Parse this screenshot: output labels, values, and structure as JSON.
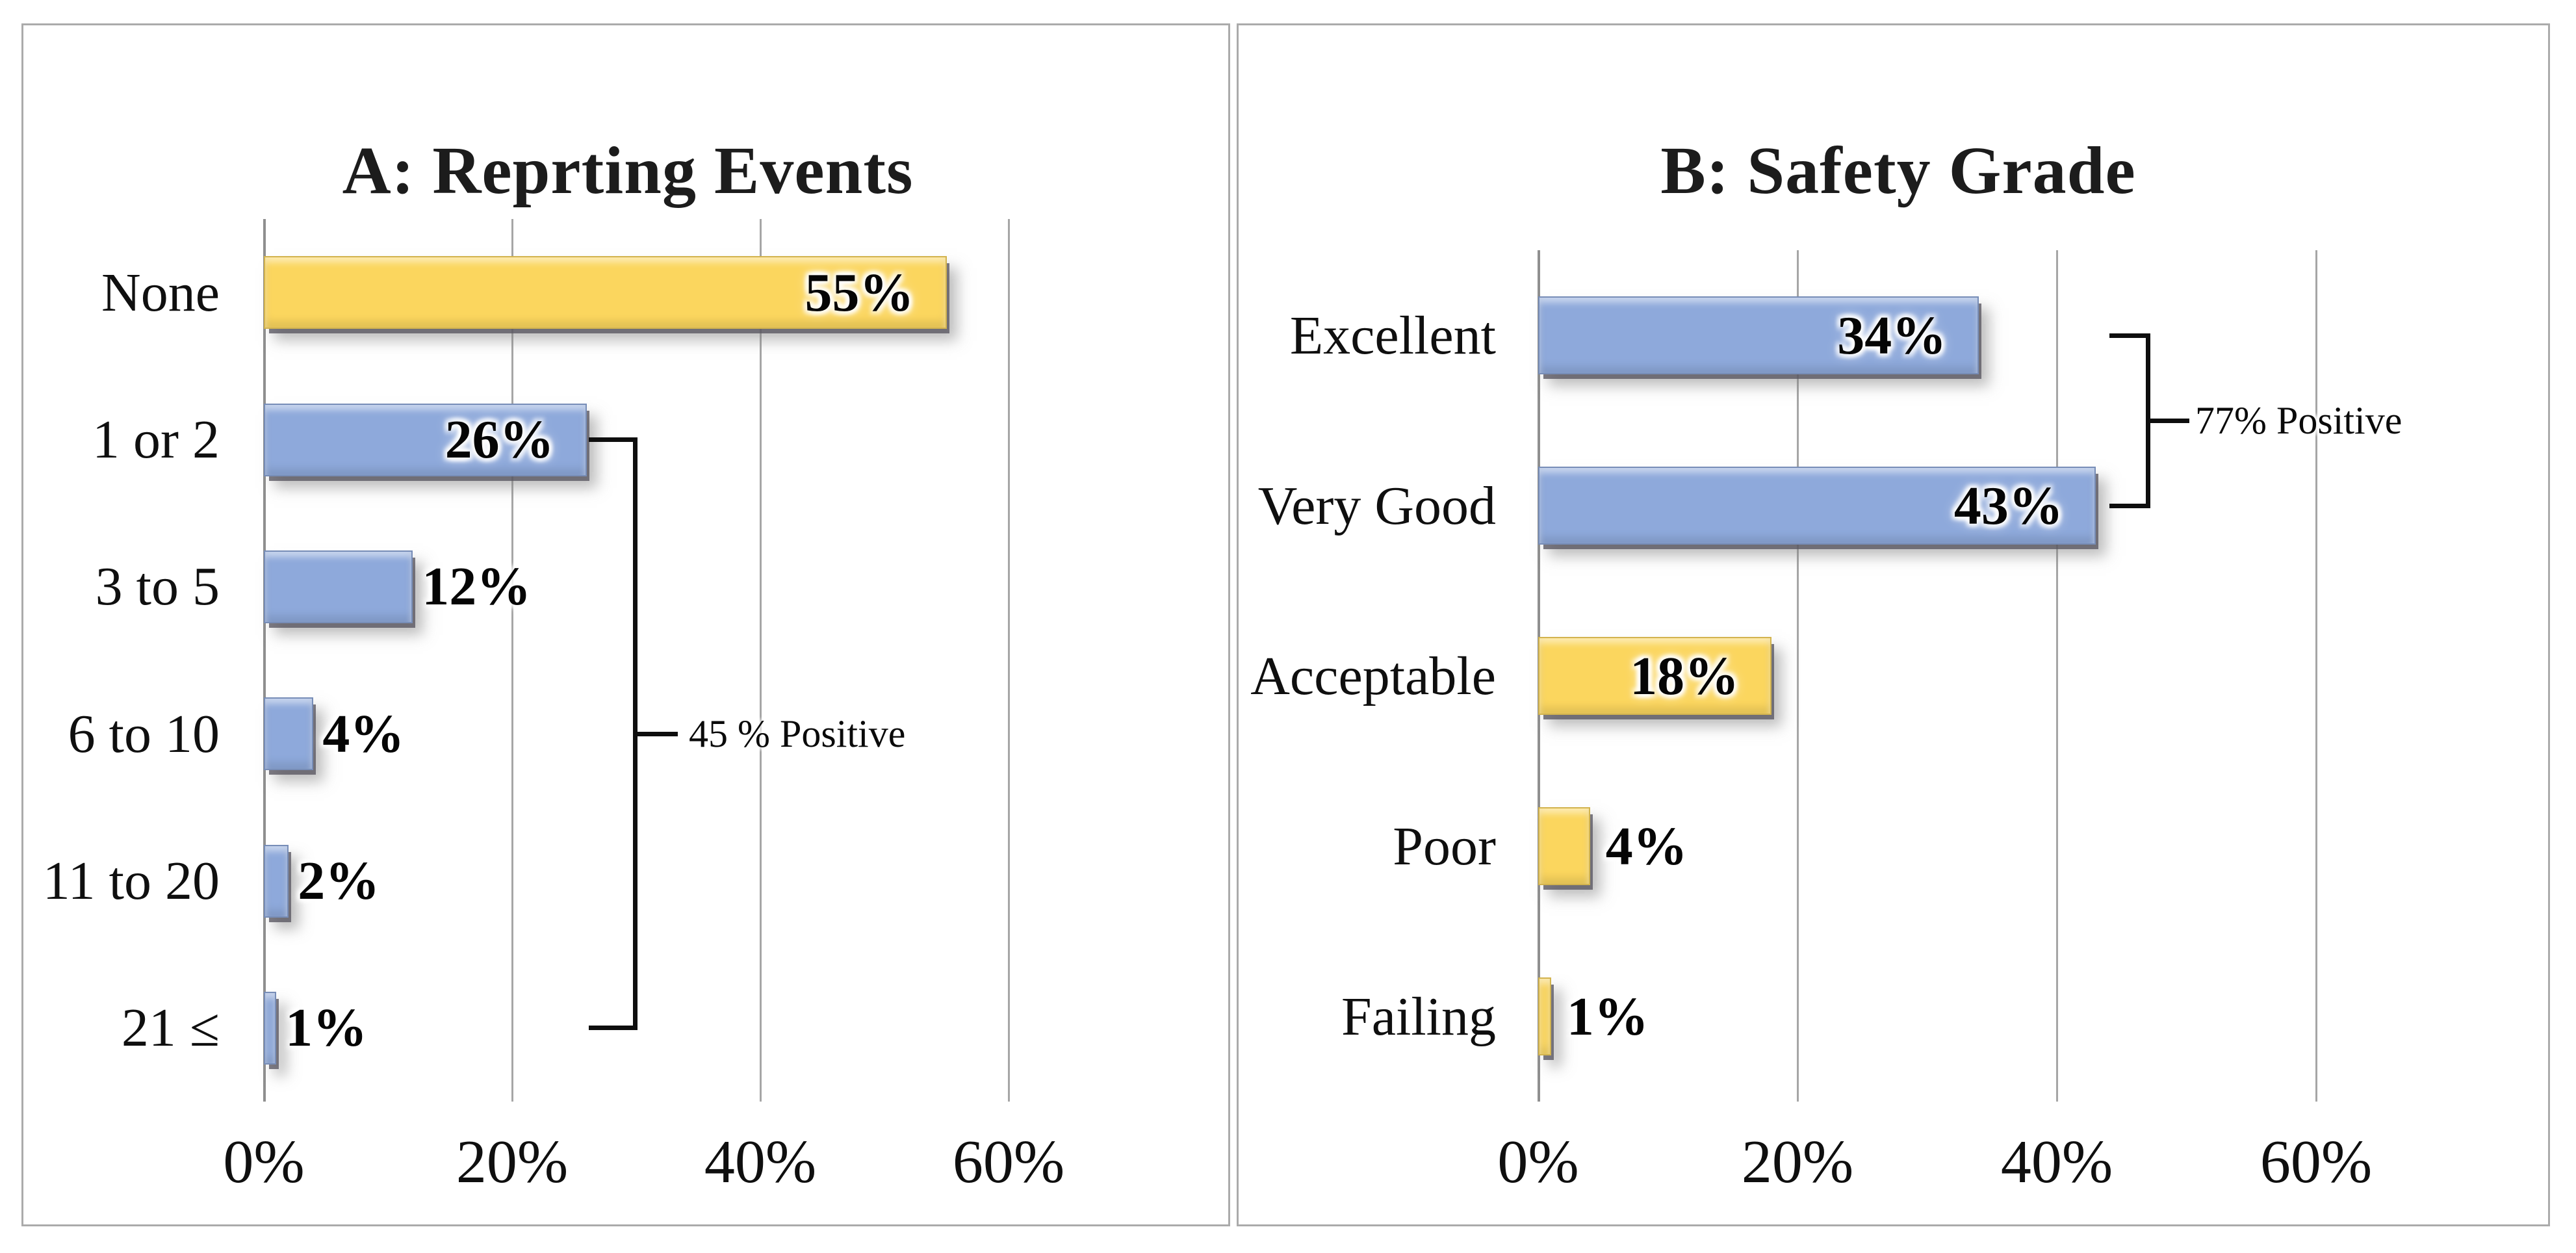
{
  "figure": {
    "description": "Two-panel horizontal bar chart figure",
    "panel_a_title": "A: Reprting Events",
    "panel_b_title": "B: Safety Grade"
  },
  "chart_data": [
    {
      "type": "bar",
      "orientation": "horizontal",
      "title": "A: Reprting Events",
      "categories": [
        "None",
        "1 or 2",
        "3 to 5",
        "6 to 10",
        "11 to 20",
        "21 ≤"
      ],
      "values": [
        55,
        26,
        12,
        4,
        2,
        1
      ],
      "value_labels": [
        "55%",
        "26%",
        "12%",
        "4%",
        "2%",
        "1%"
      ],
      "bar_colors": [
        "yellow",
        "blue",
        "blue",
        "blue",
        "blue",
        "blue"
      ],
      "x_tick_labels": [
        "0%",
        "20%",
        "40%",
        "60%"
      ],
      "x_tick_values": [
        0,
        20,
        40,
        60
      ],
      "xlim": [
        0,
        72
      ],
      "grid": true,
      "legend": null,
      "annotation": {
        "text": "45 % Positive",
        "spans_from_category": "1 or 2",
        "spans_to_category": "21 ≤"
      }
    },
    {
      "type": "bar",
      "orientation": "horizontal",
      "title": "B: Safety Grade",
      "categories": [
        "Excellent",
        "Very Good",
        "Acceptable",
        "Poor",
        "Failing"
      ],
      "values": [
        34,
        43,
        18,
        4,
        1
      ],
      "value_labels": [
        "34%",
        "43%",
        "18%",
        "4%",
        "1%"
      ],
      "bar_colors": [
        "blue",
        "blue",
        "yellow",
        "yellow",
        "yellow"
      ],
      "x_tick_labels": [
        "0%",
        "20%",
        "40%",
        "60%"
      ],
      "x_tick_values": [
        0,
        20,
        40,
        60
      ],
      "xlim": [
        0,
        72
      ],
      "grid": true,
      "legend": null,
      "annotation": {
        "text": "77% Positive",
        "spans_from_category": "Excellent",
        "spans_to_category": "Very Good"
      }
    }
  ],
  "colors": {
    "bar_yellow": "#FBD65E",
    "bar_blue": "#8EA9DB",
    "gridline": "#a6a6a6",
    "axis_line": "#8f8f8f",
    "bracket": "#0e0e0e",
    "panel_border": "#ababab",
    "text": "#111111",
    "background": "#ffffff"
  }
}
